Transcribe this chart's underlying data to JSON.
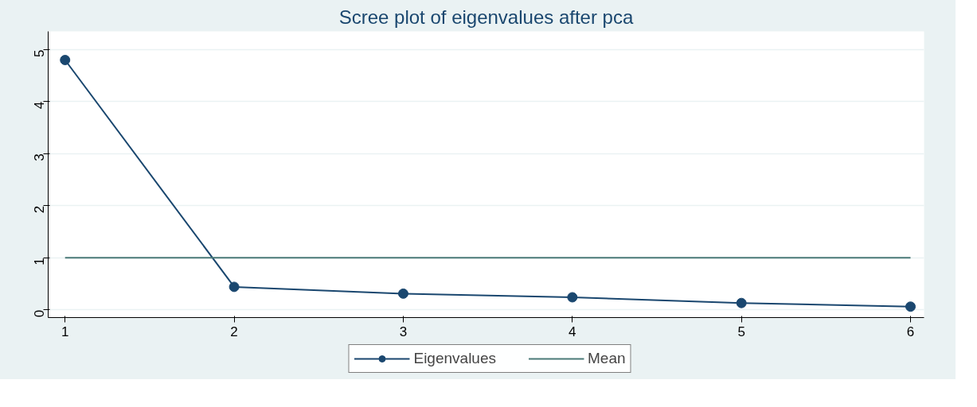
{
  "chart_data": {
    "type": "line",
    "title": "Scree plot of eigenvalues after pca",
    "x": [
      1,
      2,
      3,
      4,
      5,
      6
    ],
    "series": [
      {
        "name": "Eigenvalues",
        "color": "#1a476f",
        "values": [
          4.8,
          0.44,
          0.31,
          0.24,
          0.13,
          0.06
        ],
        "marker": "circle"
      },
      {
        "name": "Mean",
        "color": "#4a7a78",
        "values": [
          1,
          1,
          1,
          1,
          1,
          1
        ],
        "marker": "none"
      }
    ],
    "xlim": [
      0.9,
      6.08
    ],
    "xticks": [
      1,
      2,
      3,
      4,
      5,
      6
    ],
    "ylim": [
      -0.15,
      5.35
    ],
    "yticks": [
      0,
      1,
      2,
      3,
      4,
      5
    ],
    "grid": "y",
    "legend": "bottom",
    "line_style": "solid"
  }
}
